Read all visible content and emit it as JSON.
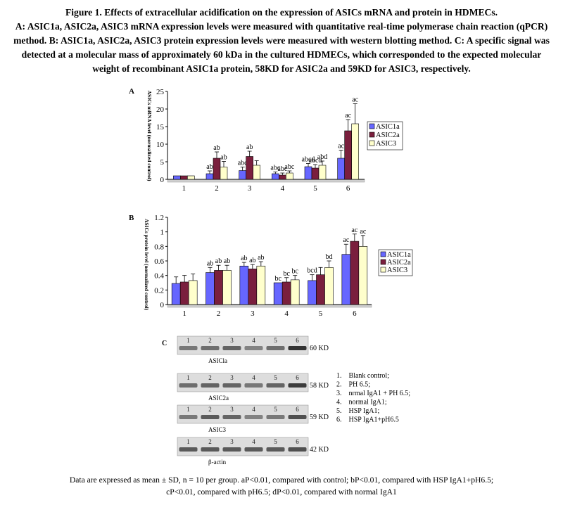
{
  "caption": {
    "title": "Figure 1. Effects of extracellular acidification on the expression of ASICs mRNA and protein in HDMECs.",
    "body": "A: ASIC1a, ASIC2a, ASIC3 mRNA expression levels were measured with quantitative real-time polymerase chain reaction (qPCR) method. B: ASIC1a, ASIC2a, ASIC3 protein expression levels were measured with western blotting method. C: A specific signal was detected at a molecular mass of approximately 60 kDa in the cultured HDMECs, which corresponded to the expected molecular weight of recombinant ASIC1a protein, 58KD for ASIC2a and 59KD for ASIC3, respectively."
  },
  "colors": {
    "asic1a": "#6666ff",
    "asic2a": "#7a1f3d",
    "asic3": "#ffffcc"
  },
  "chart_data": [
    {
      "panel": "A",
      "type": "bar",
      "ylabel": "ASICs mRNA level (normalized control)",
      "ylim": [
        0,
        25
      ],
      "yticks": [
        "0",
        "5",
        "10",
        "15",
        "20",
        "25"
      ],
      "categories": [
        "1",
        "2",
        "3",
        "4",
        "5",
        "6"
      ],
      "legend_position": "right",
      "series": [
        {
          "name": "ASIC1a",
          "values": [
            1,
            1.6,
            2.5,
            1.6,
            3.6,
            6
          ],
          "errors": [
            0,
            0.8,
            1.0,
            0.5,
            0.9,
            2.3
          ],
          "labels": [
            "",
            "ab",
            "abc",
            "abc",
            "abcd",
            "ac"
          ]
        },
        {
          "name": "ASIC2a",
          "values": [
            1,
            6,
            6.5,
            1.2,
            3.2,
            13.8
          ],
          "errors": [
            0,
            1.8,
            1.5,
            0.6,
            1.0,
            3.2
          ],
          "labels": [
            "",
            "ab",
            "ab",
            "abc",
            "abcd",
            "ac"
          ]
        },
        {
          "name": "ASIC3",
          "values": [
            1,
            3.5,
            4,
            1.8,
            4,
            15.8
          ],
          "errors": [
            0,
            1.6,
            1.3,
            0.6,
            1.2,
            5.7
          ],
          "labels": [
            "",
            "ab",
            "",
            "abc",
            "abd",
            "ac"
          ]
        }
      ]
    },
    {
      "panel": "B",
      "type": "bar",
      "ylabel": "ASICs protein level (normalized control)",
      "ylim": [
        0,
        1.2
      ],
      "yticks": [
        "0",
        "0.2",
        "0.4",
        "0.6",
        "0.8",
        "1",
        "1.2"
      ],
      "categories": [
        "1",
        "2",
        "3",
        "4",
        "5",
        "6"
      ],
      "legend_position": "right",
      "series": [
        {
          "name": "ASIC1a",
          "values": [
            0.29,
            0.44,
            0.53,
            0.3,
            0.33,
            0.69
          ],
          "errors": [
            0.09,
            0.07,
            0.05,
            0.0,
            0.08,
            0.14
          ],
          "labels": [
            "",
            "ab",
            "ab",
            "bc",
            "bcd",
            "ac"
          ]
        },
        {
          "name": "ASIC2a",
          "values": [
            0.31,
            0.47,
            0.49,
            0.31,
            0.41,
            0.87
          ],
          "errors": [
            0.09,
            0.07,
            0.06,
            0.06,
            0.1,
            0.1
          ],
          "labels": [
            "",
            "ab",
            "ab",
            "bc",
            "",
            "ac"
          ]
        },
        {
          "name": "ASIC3",
          "values": [
            0.33,
            0.47,
            0.53,
            0.34,
            0.51,
            0.8
          ],
          "errors": [
            0.09,
            0.07,
            0.06,
            0.06,
            0.09,
            0.15
          ],
          "labels": [
            "",
            "ab",
            "ab",
            "bc",
            "bd",
            "ac"
          ]
        }
      ]
    }
  ],
  "blots": {
    "panel_label": "C",
    "rows": [
      {
        "name": "ASIC1a",
        "lanes": [
          "1",
          "2",
          "3",
          "4",
          "5",
          "6"
        ],
        "marker": "60 KD",
        "label": "ASICla"
      },
      {
        "name": "ASIC2a",
        "lanes": [
          "1",
          "2",
          "3",
          "4",
          "5",
          "6"
        ],
        "marker": "58 KD",
        "label": "ASIC2a"
      },
      {
        "name": "ASIC3",
        "lanes": [
          "1",
          "2",
          "3",
          "4",
          "5",
          "6"
        ],
        "marker": "59 KD",
        "label": "ASIC3"
      },
      {
        "name": "beta-actin",
        "lanes": [
          "1",
          "2",
          "3",
          "4",
          "5",
          "6"
        ],
        "marker": "42 KD",
        "label": "β-actin"
      }
    ],
    "band_intensity": [
      [
        0.55,
        0.6,
        0.65,
        0.5,
        0.6,
        0.9
      ],
      [
        0.6,
        0.65,
        0.65,
        0.55,
        0.65,
        0.85
      ],
      [
        0.55,
        0.7,
        0.65,
        0.5,
        0.55,
        0.75
      ],
      [
        0.7,
        0.7,
        0.7,
        0.7,
        0.7,
        0.75
      ]
    ],
    "legend": [
      "1.    Blank control;",
      "2.    PH 6.5;",
      "3.    nrmal IgA1 + PH 6.5;",
      "4.    normal IgA1;",
      "5.    HSP IgA1;",
      "6.    HSP IgA1+pH6.5"
    ]
  },
  "footnote": "Data are expressed as mean ± SD, n = 10 per group. aP<0.01, compared with control; bP<0.01, compared with HSP IgA1+pH6.5; cP<0.01, compared with pH6.5; dP<0.01, compared with normal IgA1"
}
